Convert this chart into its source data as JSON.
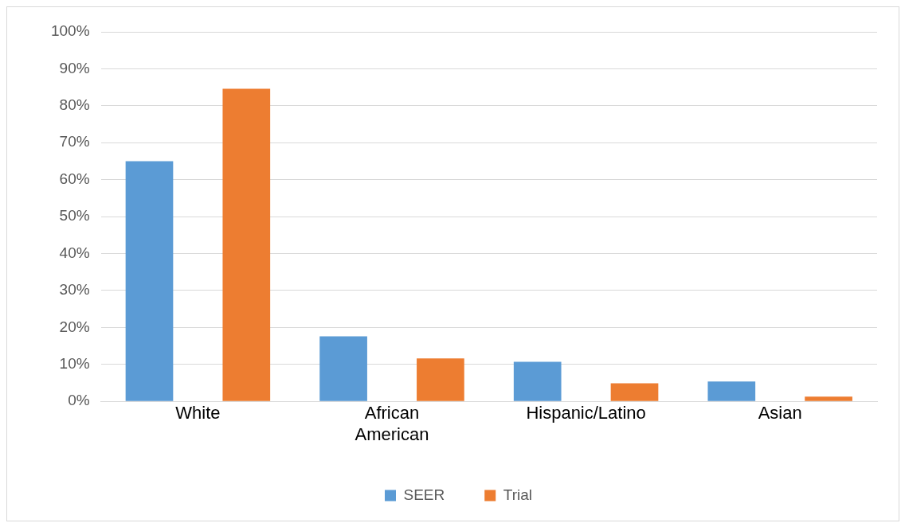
{
  "chart_data": {
    "type": "bar",
    "categories": [
      "White",
      "African American",
      "Hispanic/Latino",
      "Asian"
    ],
    "series": [
      {
        "name": "SEER",
        "color": "#5b9bd5",
        "values": [
          65,
          17.6,
          10.7,
          5.4
        ]
      },
      {
        "name": "Trial",
        "color": "#ed7d31",
        "values": [
          84.6,
          11.6,
          4.9,
          1.3
        ]
      }
    ],
    "ylim": [
      0,
      100
    ],
    "yticks": [
      {
        "value": 0,
        "label": "0%"
      },
      {
        "value": 10,
        "label": "10%"
      },
      {
        "value": 20,
        "label": "20%"
      },
      {
        "value": 30,
        "label": "30%"
      },
      {
        "value": 40,
        "label": "40%"
      },
      {
        "value": 50,
        "label": "50%"
      },
      {
        "value": 60,
        "label": "60%"
      },
      {
        "value": 70,
        "label": "70%"
      },
      {
        "value": 80,
        "label": "80%"
      },
      {
        "value": 90,
        "label": "90%"
      },
      {
        "value": 100,
        "label": "100%"
      }
    ],
    "grid": "y",
    "legend": "bottom"
  }
}
